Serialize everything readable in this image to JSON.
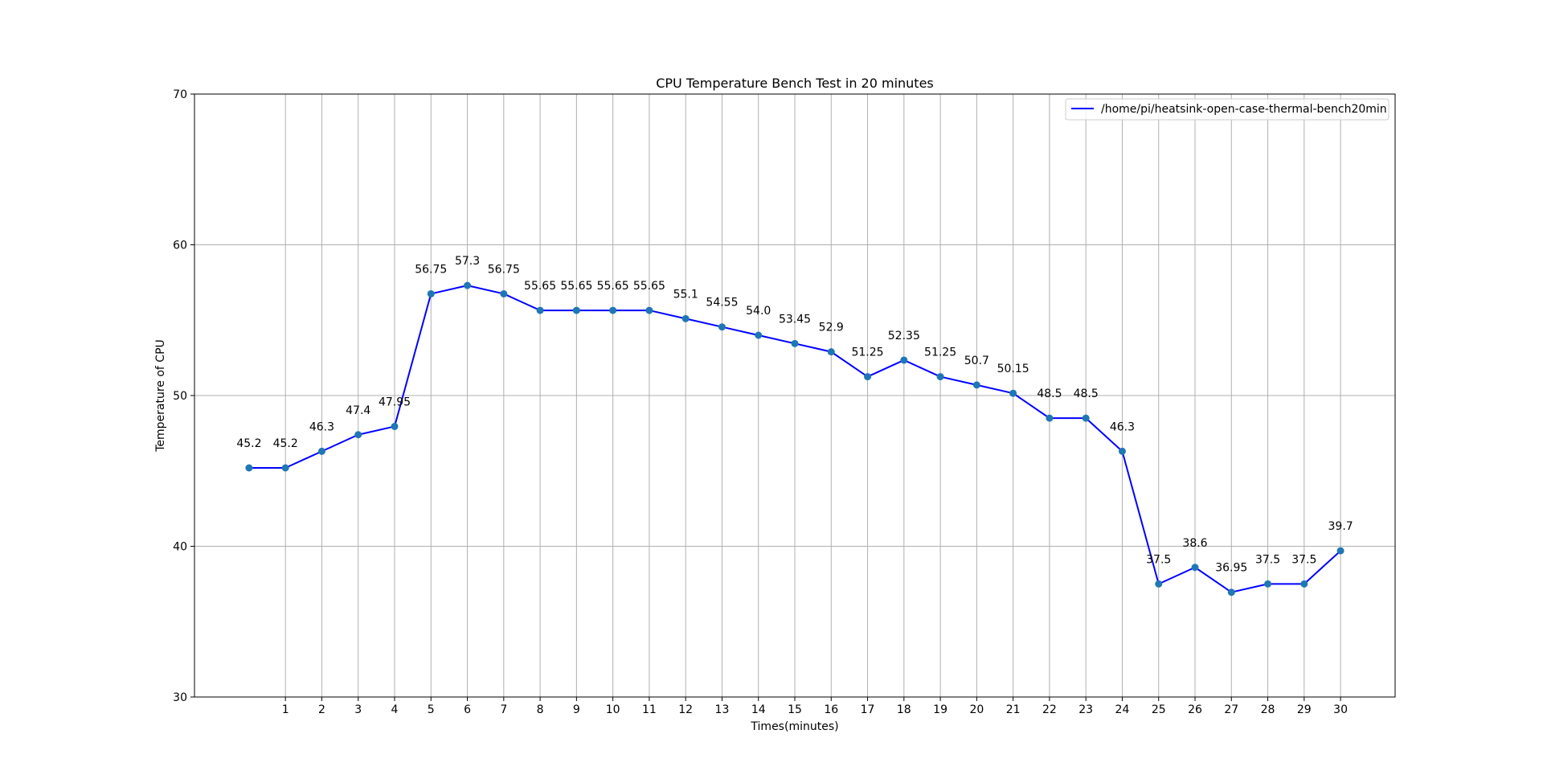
{
  "chart_data": {
    "type": "line",
    "title": "CPU Temperature Bench Test in 20 minutes",
    "xlabel": "Times(minutes)",
    "ylabel": "Temperature of CPU",
    "xlim": [
      -1.5,
      31.5
    ],
    "ylim": [
      30,
      70
    ],
    "xticks": [
      1,
      2,
      3,
      4,
      5,
      6,
      7,
      8,
      9,
      10,
      11,
      12,
      13,
      14,
      15,
      16,
      17,
      18,
      19,
      20,
      21,
      22,
      23,
      24,
      25,
      26,
      27,
      28,
      29,
      30
    ],
    "yticks": [
      30,
      40,
      50,
      60,
      70
    ],
    "grid": true,
    "legend_position": "top-right",
    "series": [
      {
        "name": "/home/pi/heatsink-open-case-thermal-bench20min",
        "color": "#0000ff",
        "marker_color": "#1f77b4",
        "x": [
          0,
          1,
          2,
          3,
          4,
          5,
          6,
          7,
          8,
          9,
          10,
          11,
          12,
          13,
          14,
          15,
          16,
          17,
          18,
          19,
          20,
          21,
          22,
          23,
          24,
          25,
          26,
          27,
          28,
          29,
          30
        ],
        "y": [
          45.2,
          45.2,
          46.3,
          47.4,
          47.95,
          56.75,
          57.3,
          56.75,
          55.65,
          55.65,
          55.65,
          55.65,
          55.1,
          54.55,
          54.0,
          53.45,
          52.9,
          51.25,
          52.35,
          51.25,
          50.7,
          50.15,
          48.5,
          48.5,
          46.3,
          37.5,
          38.6,
          36.95,
          37.5,
          37.5,
          39.7
        ],
        "labels": [
          "45.2",
          "45.2",
          "46.3",
          "47.4",
          "47.95",
          "56.75",
          "57.3",
          "56.75",
          "55.65",
          "55.65",
          "55.65",
          "55.65",
          "55.1",
          "54.55",
          "54.0",
          "53.45",
          "52.9",
          "51.25",
          "52.35",
          "51.25",
          "50.7",
          "50.15",
          "48.5",
          "48.5",
          "46.3",
          "37.5",
          "38.6",
          "36.95",
          "37.5",
          "37.5",
          "39.7"
        ]
      }
    ]
  }
}
